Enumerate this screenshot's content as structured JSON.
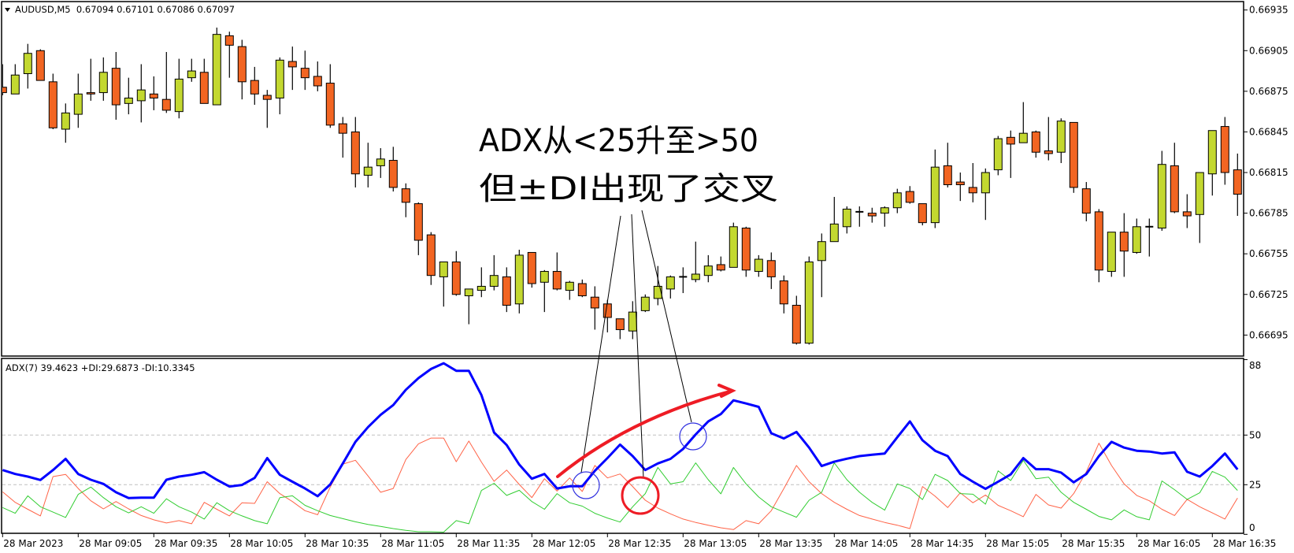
{
  "chart_data": {
    "type": "candlestick",
    "symbol_header": "AUDUSD,M5  0.67094 0.67101 0.67086 0.67097",
    "colors": {
      "bull": "#c3d830",
      "bear": "#f26522",
      "doji": "#000000",
      "adx": "#0000ff",
      "plus_di": "#32cd32",
      "minus_di": "#ff6347",
      "level": "#c0c0c0",
      "annotation_red": "#ee1c25",
      "annotation_blue": "#3030e0"
    },
    "price_axis": {
      "ticks": [
        "0.66935",
        "0.66905",
        "0.66875",
        "0.66845",
        "0.66815",
        "0.66785",
        "0.66755",
        "0.66725",
        "0.66695"
      ]
    },
    "x_labels": [
      "28 Mar 2023",
      "28 Mar 09:05",
      "28 Mar 09:35",
      "28 Mar 10:05",
      "28 Mar 10:35",
      "28 Mar 11:05",
      "28 Mar 11:35",
      "28 Mar 12:05",
      "28 Mar 12:35",
      "28 Mar 13:05",
      "28 Mar 13:35",
      "28 Mar 14:05",
      "28 Mar 14:35",
      "28 Mar 15:05",
      "28 Mar 15:35",
      "28 Mar 16:05",
      "28 Mar 16:35"
    ],
    "ohlc": [
      [
        0.66878,
        0.66895,
        0.66872,
        0.66874
      ],
      [
        0.66873,
        0.66895,
        0.66873,
        0.66887
      ],
      [
        0.66888,
        0.6691,
        0.66877,
        0.66903
      ],
      [
        0.66905,
        0.66906,
        0.66883,
        0.66883
      ],
      [
        0.66882,
        0.66888,
        0.66847,
        0.66848
      ],
      [
        0.66847,
        0.66866,
        0.66837,
        0.66859
      ],
      [
        0.66858,
        0.66888,
        0.66848,
        0.66873
      ],
      [
        0.66874,
        0.66899,
        0.66868,
        0.66873
      ],
      [
        0.66874,
        0.669,
        0.66868,
        0.66889
      ],
      [
        0.66892,
        0.66904,
        0.66854,
        0.66865
      ],
      [
        0.66866,
        0.66885,
        0.66858,
        0.6687
      ],
      [
        0.66868,
        0.66895,
        0.66852,
        0.66876
      ],
      [
        0.66873,
        0.66886,
        0.66861,
        0.6687
      ],
      [
        0.66869,
        0.66904,
        0.66859,
        0.66861
      ],
      [
        0.6686,
        0.66899,
        0.66855,
        0.66884
      ],
      [
        0.66885,
        0.66899,
        0.66882,
        0.6689
      ],
      [
        0.66889,
        0.66899,
        0.66866,
        0.66866
      ],
      [
        0.66865,
        0.66922,
        0.66865,
        0.66917
      ],
      [
        0.66916,
        0.66919,
        0.66885,
        0.66909
      ],
      [
        0.66908,
        0.66913,
        0.66869,
        0.66882
      ],
      [
        0.66883,
        0.66893,
        0.66865,
        0.66873
      ],
      [
        0.66872,
        0.66876,
        0.66848,
        0.66869
      ],
      [
        0.6687,
        0.669,
        0.66858,
        0.66898
      ],
      [
        0.66897,
        0.66908,
        0.66876,
        0.66893
      ],
      [
        0.66892,
        0.66905,
        0.66876,
        0.66885
      ],
      [
        0.66886,
        0.66897,
        0.66875,
        0.66879
      ],
      [
        0.66881,
        0.66895,
        0.66848,
        0.6685
      ],
      [
        0.66851,
        0.66856,
        0.66826,
        0.66844
      ],
      [
        0.66845,
        0.66856,
        0.66804,
        0.66814
      ],
      [
        0.66813,
        0.66837,
        0.66804,
        0.66819
      ],
      [
        0.6682,
        0.66833,
        0.66811,
        0.66825
      ],
      [
        0.66824,
        0.66834,
        0.66801,
        0.66804
      ],
      [
        0.66803,
        0.66807,
        0.66782,
        0.66793
      ],
      [
        0.66792,
        0.66793,
        0.66754,
        0.66765
      ],
      [
        0.66769,
        0.66771,
        0.66732,
        0.66739
      ],
      [
        0.66738,
        0.66749,
        0.66716,
        0.66749
      ],
      [
        0.66749,
        0.66757,
        0.66724,
        0.66725
      ],
      [
        0.66724,
        0.66729,
        0.66703,
        0.66729
      ],
      [
        0.66728,
        0.66745,
        0.66723,
        0.66731
      ],
      [
        0.66731,
        0.66754,
        0.66728,
        0.66739
      ],
      [
        0.66738,
        0.66745,
        0.66712,
        0.66717
      ],
      [
        0.66718,
        0.66758,
        0.66711,
        0.66754
      ],
      [
        0.66756,
        0.66756,
        0.6673,
        0.66733
      ],
      [
        0.66734,
        0.66743,
        0.66712,
        0.66742
      ],
      [
        0.66742,
        0.66756,
        0.66728,
        0.66729
      ],
      [
        0.66728,
        0.66735,
        0.66721,
        0.66734
      ],
      [
        0.66733,
        0.66736,
        0.66723,
        0.66724
      ],
      [
        0.66723,
        0.66731,
        0.66699,
        0.66715
      ],
      [
        0.66718,
        0.66721,
        0.66697,
        0.66708
      ],
      [
        0.66707,
        0.66707,
        0.66692,
        0.66699
      ],
      [
        0.66698,
        0.6672,
        0.66692,
        0.66712
      ],
      [
        0.66713,
        0.66725,
        0.66712,
        0.66723
      ],
      [
        0.66722,
        0.66746,
        0.66717,
        0.66731
      ],
      [
        0.66729,
        0.66739,
        0.66722,
        0.66738
      ],
      [
        0.66738,
        0.66745,
        0.66726,
        0.66738
      ],
      [
        0.66736,
        0.66764,
        0.66734,
        0.6674
      ],
      [
        0.66739,
        0.66754,
        0.66734,
        0.66746
      ],
      [
        0.66747,
        0.66753,
        0.66742,
        0.66743
      ],
      [
        0.66745,
        0.66778,
        0.66745,
        0.66775
      ],
      [
        0.66774,
        0.66775,
        0.66738,
        0.66743
      ],
      [
        0.66742,
        0.66754,
        0.66738,
        0.66751
      ],
      [
        0.6675,
        0.66756,
        0.66729,
        0.66738
      ],
      [
        0.66735,
        0.66739,
        0.66711,
        0.66718
      ],
      [
        0.66717,
        0.66724,
        0.66688,
        0.66689
      ],
      [
        0.66689,
        0.66753,
        0.66688,
        0.66749
      ],
      [
        0.6675,
        0.6677,
        0.66723,
        0.66764
      ],
      [
        0.66764,
        0.66797,
        0.66764,
        0.66777
      ],
      [
        0.66775,
        0.6679,
        0.6677,
        0.66788
      ],
      [
        0.66786,
        0.6679,
        0.66775,
        0.66786
      ],
      [
        0.66785,
        0.66789,
        0.66778,
        0.66783
      ],
      [
        0.66785,
        0.6679,
        0.66775,
        0.66789
      ],
      [
        0.66789,
        0.66803,
        0.66785,
        0.668
      ],
      [
        0.66801,
        0.66805,
        0.66792,
        0.66793
      ],
      [
        0.66792,
        0.66792,
        0.66776,
        0.66778
      ],
      [
        0.66778,
        0.66832,
        0.66774,
        0.66819
      ],
      [
        0.6682,
        0.66837,
        0.66804,
        0.66806
      ],
      [
        0.66808,
        0.66815,
        0.66794,
        0.66806
      ],
      [
        0.66804,
        0.66822,
        0.66793,
        0.668
      ],
      [
        0.668,
        0.66818,
        0.6678,
        0.66815
      ],
      [
        0.66817,
        0.66842,
        0.66813,
        0.6684
      ],
      [
        0.66841,
        0.66846,
        0.66811,
        0.66836
      ],
      [
        0.66837,
        0.66867,
        0.66837,
        0.66844
      ],
      [
        0.66845,
        0.66846,
        0.66826,
        0.6683
      ],
      [
        0.66831,
        0.66856,
        0.66824,
        0.66829
      ],
      [
        0.6683,
        0.66855,
        0.66822,
        0.66853
      ],
      [
        0.66852,
        0.66852,
        0.668,
        0.66804
      ],
      [
        0.66803,
        0.66808,
        0.66779,
        0.66785
      ],
      [
        0.66786,
        0.66788,
        0.66734,
        0.66743
      ],
      [
        0.66742,
        0.66771,
        0.66738,
        0.66771
      ],
      [
        0.66771,
        0.66785,
        0.66738,
        0.66757
      ],
      [
        0.66756,
        0.66781,
        0.66755,
        0.66775
      ],
      [
        0.66775,
        0.66781,
        0.66753,
        0.66775
      ],
      [
        0.66774,
        0.66831,
        0.66772,
        0.66821
      ],
      [
        0.6682,
        0.66837,
        0.66785,
        0.66786
      ],
      [
        0.66786,
        0.66799,
        0.66774,
        0.66783
      ],
      [
        0.66784,
        0.66815,
        0.66763,
        0.66815
      ],
      [
        0.66814,
        0.66846,
        0.66798,
        0.66846
      ],
      [
        0.66849,
        0.66856,
        0.66806,
        0.66815
      ],
      [
        0.66817,
        0.66829,
        0.66783,
        0.66799
      ]
    ],
    "indicator": {
      "header": "ADX(7) 39.4623 +DI:29.6873 -DI:10.3345",
      "ylim": [
        0,
        88
      ],
      "ticks": [
        "88",
        "50",
        "25",
        "0"
      ],
      "levels": [
        50,
        25
      ],
      "adx": [
        32.4,
        30.4,
        29.1,
        27.4,
        32.4,
        38.0,
        30.4,
        27.5,
        25.4,
        21.2,
        18.3,
        18.5,
        18.5,
        27.5,
        29.1,
        30.0,
        31.3,
        27.5,
        24.1,
        24.9,
        28.4,
        38.4,
        30.0,
        26.5,
        23.1,
        19.2,
        25.1,
        35.7,
        46.6,
        54.0,
        60.2,
        65.1,
        72.8,
        78.7,
        83.3,
        86.2,
        82.4,
        82.4,
        70.1,
        51.3,
        45.0,
        35.1,
        28.0,
        30.4,
        23.1,
        24.2,
        24.2,
        32.0,
        38.4,
        45.2,
        39.4,
        32.4,
        35.7,
        38.0,
        43.0,
        50.3,
        56.9,
        60.6,
        67.5,
        65.9,
        64.2,
        50.9,
        48.3,
        51.6,
        43.7,
        34.4,
        36.6,
        38.1,
        39.4,
        40.1,
        40.7,
        48.9,
        56.9,
        47.4,
        42.1,
        39.4,
        30.4,
        26.5,
        22.9,
        26.5,
        30.2,
        38.4,
        32.8,
        32.8,
        31.1,
        26.2,
        30.4,
        39.4,
        46.6,
        43.7,
        42.1,
        41.7,
        40.7,
        41.3,
        31.5,
        29.1,
        34.4,
        40.7,
        32.7
      ],
      "plus_di": [
        13.5,
        10.6,
        19.4,
        13.9,
        11.2,
        8.5,
        20.1,
        23.8,
        18.5,
        13.9,
        10.8,
        13.9,
        10.6,
        17.9,
        13.9,
        11.2,
        7.7,
        15.9,
        11.9,
        9.3,
        6.9,
        5.3,
        18.5,
        19.4,
        14.6,
        11.9,
        9.5,
        7.9,
        6.3,
        5.0,
        4.0,
        2.9,
        2.0,
        1.3,
        1.3,
        1.1,
        6.9,
        5.3,
        22.1,
        25.7,
        19.6,
        22.2,
        16.5,
        12.6,
        20.5,
        15.9,
        14.2,
        10.6,
        8.2,
        6.2,
        13.9,
        20.5,
        33.7,
        25.4,
        26.5,
        36.0,
        27.5,
        20.4,
        33.7,
        25.4,
        18.8,
        13.9,
        11.2,
        8.6,
        17.2,
        21.2,
        36.0,
        27.5,
        21.2,
        16.1,
        12.2,
        25.4,
        23.1,
        17.5,
        30.2,
        27.1,
        20.5,
        20.2,
        15.2,
        32.0,
        27.1,
        37.3,
        28.0,
        28.8,
        21.2,
        16.1,
        12.6,
        9.0,
        7.3,
        12.3,
        8.9,
        7.3,
        26.9,
        22.5,
        17.6,
        20.9,
        31.7,
        28.8,
        22.1
      ],
      "minus_di": [
        21.4,
        16.1,
        12.6,
        9.3,
        29.1,
        30.2,
        23.1,
        16.9,
        12.8,
        16.5,
        12.8,
        9.5,
        7.3,
        5.7,
        6.9,
        5.3,
        16.1,
        12.6,
        9.3,
        15.9,
        15.6,
        26.5,
        20.5,
        16.5,
        11.9,
        9.9,
        23.8,
        35.4,
        37.3,
        29.4,
        21.2,
        23.1,
        37.7,
        45.6,
        48.5,
        48.5,
        36.6,
        47.0,
        36.4,
        26.7,
        32.4,
        25.1,
        18.5,
        28.0,
        21.8,
        28.4,
        21.6,
        34.7,
        28.4,
        30.4,
        24.1,
        17.2,
        13.2,
        10.3,
        7.7,
        6.0,
        4.6,
        3.3,
        2.4,
        6.9,
        5.3,
        11.9,
        23.1,
        34.7,
        26.5,
        20.5,
        16.1,
        12.6,
        9.5,
        7.7,
        6.0,
        4.6,
        2.9,
        24.1,
        19.2,
        13.5,
        20.9,
        15.9,
        19.8,
        14.6,
        11.9,
        8.9,
        20.1,
        14.8,
        13.2,
        20.5,
        31.5,
        45.9,
        34.7,
        25.4,
        19.6,
        16.9,
        12.6,
        9.5,
        17.6,
        13.9,
        10.8,
        7.7,
        18.3
      ]
    },
    "annotation": {
      "line1": "ADX从<25升至>50",
      "line2": "但±DI出现了交叉"
    }
  }
}
